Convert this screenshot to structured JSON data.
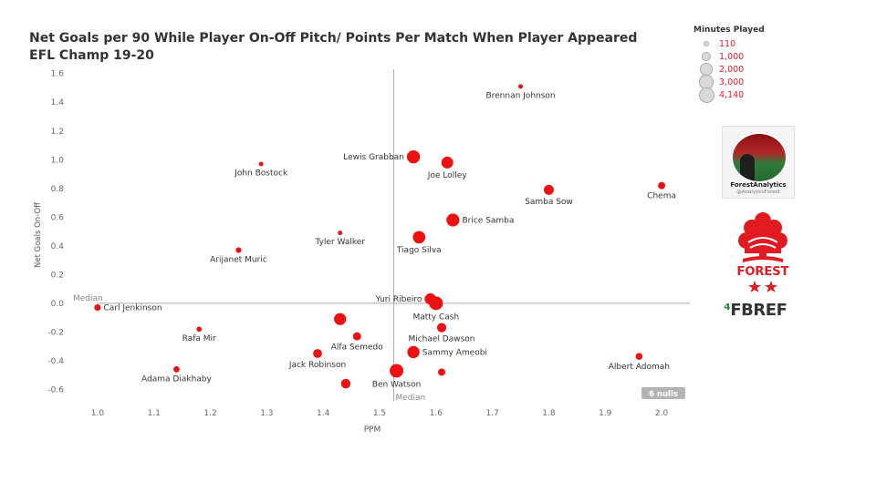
{
  "title": {
    "line1": "Net Goals per 90 While Player On-Off Pitch/ Points Per Match When Player Appeared",
    "line2": "EFL Champ 19-20"
  },
  "legend": {
    "title": "Minutes Played",
    "entries": [
      {
        "label": "110",
        "minutes": 110
      },
      {
        "label": "1,000",
        "minutes": 1000
      },
      {
        "label": "2,000",
        "minutes": 2000
      },
      {
        "label": "3,000",
        "minutes": 3000
      },
      {
        "label": "4,140",
        "minutes": 4140
      }
    ]
  },
  "profile": {
    "name": "ForestAnalytics",
    "handle": "@AnalyticsForest"
  },
  "crest": {
    "text": "FOREST"
  },
  "fbref": {
    "mark": "⁴",
    "text": "FBREF"
  },
  "chart_data": {
    "type": "scatter",
    "xlabel": "PPM",
    "ylabel": "Net Goals On-Off",
    "xlim": [
      0.95,
      2.05
    ],
    "ylim": [
      -0.68,
      1.63
    ],
    "xticks": [
      "1.0",
      "1.1",
      "1.2",
      "1.3",
      "1.4",
      "1.5",
      "1.6",
      "1.7",
      "1.8",
      "1.9",
      "2.0"
    ],
    "yticks": [
      "1.6",
      "1.4",
      "1.2",
      "1.0",
      "0.8",
      "0.6",
      "0.4",
      "0.2",
      "0.0",
      "-0.2",
      "-0.4",
      "-0.6"
    ],
    "median_x": 1.525,
    "median_y": 0.0,
    "median_label_x": "Median",
    "median_label_y": "Median",
    "nulls_label": "6 nulls",
    "color": "#ee1111",
    "points": [
      {
        "name": "Brennan Johnson",
        "x": 1.75,
        "y": 1.51,
        "minutes": 110,
        "label_pos": "below"
      },
      {
        "name": "Lewis Grabban",
        "x": 1.56,
        "y": 1.02,
        "minutes": 3700,
        "label_pos": "left"
      },
      {
        "name": "Joe Lolley",
        "x": 1.62,
        "y": 0.98,
        "minutes": 2900,
        "label_pos": "below"
      },
      {
        "name": "John Bostock",
        "x": 1.29,
        "y": 0.97,
        "minutes": 110,
        "label_pos": "below"
      },
      {
        "name": "Samba Sow",
        "x": 1.8,
        "y": 0.79,
        "minutes": 1800,
        "label_pos": "below"
      },
      {
        "name": "Chema",
        "x": 2.0,
        "y": 0.82,
        "minutes": 700,
        "label_pos": "below"
      },
      {
        "name": "Brice Samba",
        "x": 1.63,
        "y": 0.58,
        "minutes": 3600,
        "label_pos": "right"
      },
      {
        "name": "Tyler Walker",
        "x": 1.43,
        "y": 0.49,
        "minutes": 110,
        "label_pos": "below"
      },
      {
        "name": "Tiago Silva",
        "x": 1.57,
        "y": 0.46,
        "minutes": 3300,
        "label_pos": "below"
      },
      {
        "name": "Arijanet Muric",
        "x": 1.25,
        "y": 0.37,
        "minutes": 300,
        "label_pos": "below"
      },
      {
        "name": "Carl Jenkinson",
        "x": 1.0,
        "y": -0.03,
        "minutes": 500,
        "label_pos": "right"
      },
      {
        "name": "Yuri Ribeiro",
        "x": 1.59,
        "y": 0.03,
        "minutes": 2600,
        "label_pos": "left"
      },
      {
        "name": "Matty Cash",
        "x": 1.6,
        "y": 0.0,
        "minutes": 4140,
        "label_pos": "below"
      },
      {
        "name": "Rafa Mir",
        "x": 1.18,
        "y": -0.18,
        "minutes": 200,
        "label_pos": "below"
      },
      {
        "name": "",
        "x": 1.43,
        "y": -0.11,
        "minutes": 3000
      },
      {
        "name": "Alfa Semedo",
        "x": 1.46,
        "y": -0.23,
        "minutes": 1000,
        "label_pos": "below"
      },
      {
        "name": "Michael Dawson",
        "x": 1.61,
        "y": -0.17,
        "minutes": 1500,
        "label_pos": "below"
      },
      {
        "name": "Sammy Ameobi",
        "x": 1.56,
        "y": -0.34,
        "minutes": 3100,
        "label_pos": "right"
      },
      {
        "name": "Jack Robinson",
        "x": 1.39,
        "y": -0.35,
        "minutes": 1300,
        "label_pos": "below"
      },
      {
        "name": "Albert Adomah",
        "x": 1.96,
        "y": -0.37,
        "minutes": 600,
        "label_pos": "below"
      },
      {
        "name": "Adama Diakhaby",
        "x": 1.14,
        "y": -0.46,
        "minutes": 400,
        "label_pos": "below"
      },
      {
        "name": "Ben Watson",
        "x": 1.53,
        "y": -0.47,
        "minutes": 4100,
        "label_pos": "below"
      },
      {
        "name": "",
        "x": 1.61,
        "y": -0.48,
        "minutes": 700
      },
      {
        "name": "",
        "x": 1.44,
        "y": -0.56,
        "minutes": 1600
      }
    ]
  }
}
